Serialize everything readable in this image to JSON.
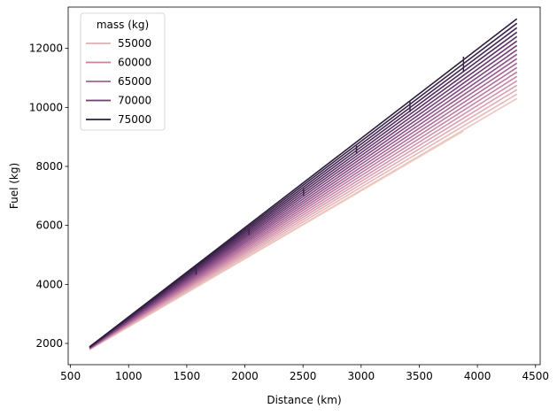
{
  "chart_data": {
    "type": "line",
    "title": "",
    "xlabel": "Distance (km)",
    "ylabel": "Fuel (kg)",
    "xlim": [
      480,
      4540
    ],
    "ylim": [
      1280,
      13400
    ],
    "xticks": [
      500,
      1000,
      1500,
      2000,
      2500,
      3000,
      3500,
      4000,
      4500
    ],
    "yticks": [
      2000,
      4000,
      6000,
      8000,
      10000,
      12000
    ],
    "grid": false,
    "legend": {
      "title": "mass (kg)",
      "placement": "top-left",
      "entries": [
        {
          "label": "55000",
          "color": "#e0b2b5"
        },
        {
          "label": "60000",
          "color": "#cf7f94"
        },
        {
          "label": "65000",
          "color": "#a5648e"
        },
        {
          "label": "70000",
          "color": "#6b3e70"
        },
        {
          "label": "75000",
          "color": "#2d1e3e"
        }
      ]
    },
    "hue_scale": {
      "low": "#efd0c5",
      "high": "#2d1e3e"
    },
    "series": [
      {
        "mass": 55000,
        "color": "#efd0c5",
        "x": [
          664,
          3878
        ],
        "y": [
          1790,
          9190
        ]
      },
      {
        "mass": 56000,
        "color": "#ebc4bf",
        "x": [
          664,
          4340
        ],
        "y": [
          1795,
          10300
        ]
      },
      {
        "mass": 57000,
        "color": "#e6b8ba",
        "x": [
          664,
          4340
        ],
        "y": [
          1800,
          10450
        ]
      },
      {
        "mass": 58000,
        "color": "#e0acb5",
        "x": [
          664,
          4340
        ],
        "y": [
          1805,
          10600
        ]
      },
      {
        "mass": 59000,
        "color": "#d99fb0",
        "x": [
          664,
          4340
        ],
        "y": [
          1810,
          10750
        ]
      },
      {
        "mass": 60000,
        "color": "#d092ab",
        "x": [
          664,
          4340
        ],
        "y": [
          1815,
          10900
        ]
      },
      {
        "mass": 61000,
        "color": "#c685a6",
        "x": [
          664,
          4340
        ],
        "y": [
          1820,
          11050
        ]
      },
      {
        "mass": 62000,
        "color": "#bb79a1",
        "x": [
          664,
          4340
        ],
        "y": [
          1825,
          11200
        ]
      },
      {
        "mass": 63000,
        "color": "#b06e9b",
        "x": [
          664,
          4340
        ],
        "y": [
          1830,
          11350
        ]
      },
      {
        "mass": 64000,
        "color": "#a46495",
        "x": [
          664,
          4340
        ],
        "y": [
          1835,
          11500
        ]
      },
      {
        "mass": 65000,
        "color": "#985a8e",
        "x": [
          664,
          4340
        ],
        "y": [
          1840,
          11650
        ]
      },
      {
        "mass": 66000,
        "color": "#8c5187",
        "x": [
          664,
          4340
        ],
        "y": [
          1845,
          11800
        ]
      },
      {
        "mass": 67000,
        "color": "#80497f",
        "x": [
          664,
          4340
        ],
        "y": [
          1850,
          11950
        ]
      },
      {
        "mass": 68000,
        "color": "#734177",
        "x": [
          664,
          4340
        ],
        "y": [
          1855,
          12100
        ]
      },
      {
        "mass": 69000,
        "color": "#673a6e",
        "x": [
          664,
          4340
        ],
        "y": [
          1860,
          12250
        ]
      },
      {
        "mass": 70000,
        "color": "#5b3365",
        "x": [
          664,
          4340
        ],
        "y": [
          1865,
          12400
        ]
      },
      {
        "mass": 71000,
        "color": "#502d5c",
        "x": [
          664,
          4340
        ],
        "y": [
          1870,
          12550
        ]
      },
      {
        "mass": 72000,
        "color": "#452853",
        "x": [
          664,
          4340
        ],
        "y": [
          1875,
          12700
        ]
      },
      {
        "mass": 73000,
        "color": "#3b2349",
        "x": [
          664,
          4340
        ],
        "y": [
          1880,
          12850
        ]
      },
      {
        "mass": 74000,
        "color": "#2d1e3e",
        "x": [
          664,
          4340
        ],
        "y": [
          1885,
          13000
        ]
      }
    ],
    "step_marks": [
      {
        "x": 1580,
        "y": [
          4330,
          4560
        ]
      },
      {
        "x": 2035,
        "y": [
          5670,
          5890
        ]
      },
      {
        "x": 2505,
        "y": [
          7010,
          7260
        ]
      },
      {
        "x": 2960,
        "y": [
          8420,
          8700
        ]
      },
      {
        "x": 3420,
        "y": [
          9840,
          10200
        ]
      },
      {
        "x": 3880,
        "y": [
          11200,
          11720
        ]
      }
    ]
  }
}
